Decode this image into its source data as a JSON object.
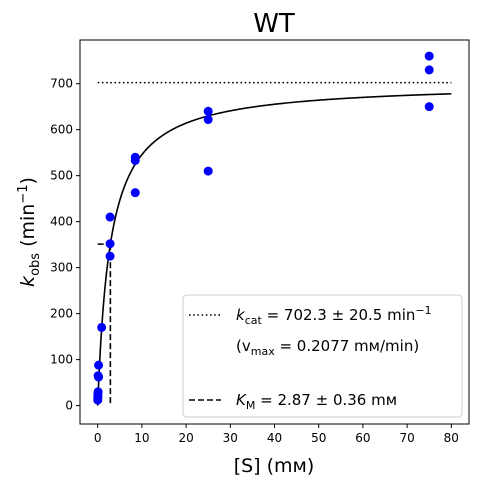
{
  "chart_data": {
    "type": "scatter",
    "title": "WT",
    "xlabel": "[S] (mм)",
    "ylabel": "k_obs (min⁻¹)",
    "xlim": [
      -4,
      84
    ],
    "ylim": [
      -40,
      795
    ],
    "xticks": [
      0,
      10,
      20,
      30,
      40,
      50,
      60,
      70,
      80
    ],
    "yticks": [
      0,
      100,
      200,
      300,
      400,
      500,
      600,
      700
    ],
    "grid": false,
    "legend_placement": "lower-right",
    "colors": {
      "points": "#0000ff",
      "fit": "#000000"
    },
    "series": [
      {
        "kind": "scatter",
        "x": [
          0.02,
          0.02,
          0.05,
          0.05,
          0.1,
          0.1,
          0.2,
          0.2,
          0.9,
          2.8,
          2.8,
          2.8,
          8.5,
          8.5,
          8.5,
          25,
          25,
          25,
          75,
          75,
          75
        ],
        "y": [
          12,
          18,
          20,
          25,
          30,
          65,
          88,
          62,
          170,
          410,
          352,
          325,
          540,
          533,
          463,
          640,
          622,
          510,
          760,
          730,
          650
        ]
      },
      {
        "kind": "fit",
        "model": "michaelis-menten",
        "kcat": 702.3,
        "KM": 2.87,
        "x_range": [
          0,
          80
        ]
      },
      {
        "kind": "kcat-line",
        "y": 702.3,
        "x_range": [
          0,
          80
        ]
      },
      {
        "kind": "KM-line",
        "x": 2.87,
        "y": 351.15
      }
    ],
    "legend": {
      "kcat_prefix": "k",
      "kcat_sub": "cat",
      "kcat_value": " = 702.3 ± 20.5 min",
      "kcat_sup": "−1",
      "vmax_open": "(v",
      "vmax_sub": "max",
      "vmax_value": " = 0.2077 mм/min)",
      "KM_prefix": "K",
      "KM_sub": "M",
      "KM_value": " = 2.87 ± 0.36 mм"
    },
    "ylabel_parts": {
      "main": "k",
      "sub": "obs",
      "open": " (min",
      "sup": "−1",
      "close": ")"
    }
  }
}
